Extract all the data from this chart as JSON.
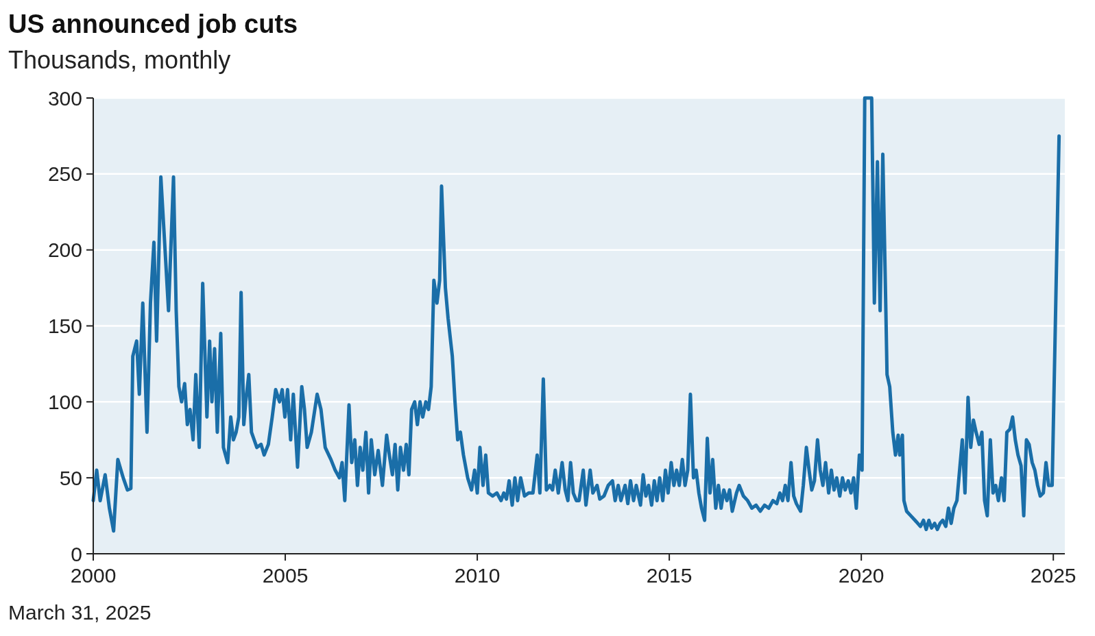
{
  "chart_data": {
    "type": "line",
    "title": "US announced job cuts",
    "subtitle": "Thousands, monthly",
    "annotations": [
      "March 31, 2025"
    ],
    "xlim": [
      2000,
      2025.3
    ],
    "xticks": [
      2000,
      2005,
      2010,
      2015,
      2020,
      2025
    ],
    "ylim": [
      0,
      300
    ],
    "yticks": [
      0,
      50,
      100,
      150,
      200,
      250,
      300
    ],
    "grid": "y",
    "marker": "none",
    "line_style": "solid",
    "series": [
      {
        "color": "#1a6ea8",
        "x": [
          2000.0,
          2000.09,
          2000.18,
          2000.31,
          2000.42,
          2000.53,
          2000.64,
          2000.78,
          2000.89,
          2000.98,
          2001.03,
          2001.13,
          2001.2,
          2001.29,
          2001.4,
          2001.49,
          2001.58,
          2001.65,
          2001.76,
          2001.87,
          2001.96,
          2002.09,
          2002.16,
          2002.23,
          2002.3,
          2002.38,
          2002.45,
          2002.52,
          2002.6,
          2002.67,
          2002.76,
          2002.85,
          2002.96,
          2003.03,
          2003.09,
          2003.16,
          2003.23,
          2003.32,
          2003.39,
          2003.5,
          2003.58,
          2003.65,
          2003.72,
          2003.79,
          2003.85,
          2003.92,
          2003.97,
          2004.05,
          2004.12,
          2004.19,
          2004.26,
          2004.37,
          2004.45,
          2004.56,
          2004.66,
          2004.75,
          2004.85,
          2004.92,
          2004.99,
          2005.06,
          2005.14,
          2005.21,
          2005.32,
          2005.43,
          2005.5,
          2005.57,
          2005.68,
          2005.83,
          2005.93,
          2006.04,
          2006.19,
          2006.3,
          2006.41,
          2006.48,
          2006.55,
          2006.66,
          2006.73,
          2006.81,
          2006.88,
          2006.95,
          2007.02,
          2007.1,
          2007.17,
          2007.24,
          2007.33,
          2007.42,
          2007.53,
          2007.64,
          2007.71,
          2007.79,
          2007.86,
          2007.93,
          2008.0,
          2008.08,
          2008.15,
          2008.22,
          2008.29,
          2008.37,
          2008.44,
          2008.51,
          2008.58,
          2008.66,
          2008.73,
          2008.8,
          2008.87,
          2008.95,
          2009.02,
          2009.07,
          2009.17,
          2009.24,
          2009.35,
          2009.42,
          2009.49,
          2009.56,
          2009.64,
          2009.75,
          2009.85,
          2009.93,
          2010.0,
          2010.07,
          2010.15,
          2010.22,
          2010.29,
          2010.4,
          2010.51,
          2010.62,
          2010.69,
          2010.76,
          2010.83,
          2010.91,
          2010.98,
          2011.05,
          2011.13,
          2011.23,
          2011.34,
          2011.45,
          2011.56,
          2011.63,
          2011.72,
          2011.8,
          2011.89,
          2011.96,
          2012.03,
          2012.11,
          2012.21,
          2012.29,
          2012.36,
          2012.43,
          2012.5,
          2012.58,
          2012.65,
          2012.76,
          2012.83,
          2012.94,
          2013.01,
          2013.12,
          2013.19,
          2013.3,
          2013.41,
          2013.52,
          2013.59,
          2013.67,
          2013.74,
          2013.85,
          2013.92,
          2013.99,
          2014.07,
          2014.14,
          2014.25,
          2014.32,
          2014.39,
          2014.46,
          2014.54,
          2014.61,
          2014.68,
          2014.75,
          2014.83,
          2014.9,
          2014.97,
          2015.05,
          2015.12,
          2015.19,
          2015.26,
          2015.34,
          2015.41,
          2015.48,
          2015.55,
          2015.63,
          2015.7,
          2015.77,
          2015.84,
          2015.92,
          2015.99,
          2016.06,
          2016.13,
          2016.21,
          2016.28,
          2016.35,
          2016.42,
          2016.5,
          2016.57,
          2016.64,
          2016.75,
          2016.82,
          2016.93,
          2017.04,
          2017.15,
          2017.26,
          2017.37,
          2017.48,
          2017.59,
          2017.7,
          2017.8,
          2017.88,
          2017.95,
          2018.02,
          2018.09,
          2018.17,
          2018.24,
          2018.31,
          2018.42,
          2018.49,
          2018.57,
          2018.64,
          2018.71,
          2018.78,
          2018.86,
          2018.93,
          2019.0,
          2019.07,
          2019.15,
          2019.22,
          2019.29,
          2019.36,
          2019.44,
          2019.51,
          2019.58,
          2019.66,
          2019.73,
          2019.8,
          2019.87,
          2019.95,
          2020.02,
          2020.09,
          2020.2,
          2020.27,
          2020.34,
          2020.42,
          2020.49,
          2020.56,
          2020.64,
          2020.67,
          2020.74,
          2020.82,
          2020.89,
          2020.96,
          2021.0,
          2021.07,
          2021.11,
          2021.18,
          2021.29,
          2021.4,
          2021.47,
          2021.54,
          2021.62,
          2021.69,
          2021.76,
          2021.83,
          2021.91,
          2021.98,
          2022.05,
          2022.12,
          2022.2,
          2022.27,
          2022.34,
          2022.41,
          2022.49,
          2022.56,
          2022.63,
          2022.7,
          2022.78,
          2022.85,
          2022.92,
          2022.99,
          2023.07,
          2023.14,
          2023.21,
          2023.28,
          2023.36,
          2023.43,
          2023.5,
          2023.57,
          2023.65,
          2023.72,
          2023.79,
          2023.87,
          2023.94,
          2024.01,
          2024.08,
          2024.16,
          2024.23,
          2024.3,
          2024.37,
          2024.45,
          2024.52,
          2024.59,
          2024.66,
          2024.74,
          2024.81,
          2024.88,
          2024.97,
          2025.15
        ],
        "values": [
          35,
          55,
          35,
          52,
          30,
          15,
          62,
          50,
          42,
          43,
          130,
          140,
          105,
          165,
          80,
          165,
          205,
          140,
          248,
          200,
          160,
          248,
          160,
          110,
          100,
          112,
          85,
          95,
          75,
          118,
          70,
          178,
          90,
          140,
          100,
          135,
          80,
          145,
          70,
          60,
          90,
          75,
          80,
          90,
          172,
          85,
          100,
          118,
          80,
          75,
          70,
          72,
          65,
          72,
          90,
          108,
          100,
          108,
          90,
          108,
          75,
          105,
          57,
          110,
          95,
          70,
          80,
          105,
          95,
          70,
          62,
          55,
          50,
          60,
          35,
          98,
          60,
          75,
          45,
          70,
          55,
          80,
          40,
          75,
          52,
          68,
          45,
          78,
          65,
          52,
          72,
          42,
          70,
          55,
          72,
          52,
          95,
          100,
          85,
          100,
          90,
          100,
          95,
          110,
          180,
          165,
          180,
          242,
          175,
          155,
          130,
          100,
          75,
          80,
          65,
          50,
          42,
          55,
          40,
          70,
          45,
          65,
          40,
          38,
          40,
          35,
          40,
          36,
          48,
          32,
          50,
          35,
          50,
          38,
          40,
          40,
          65,
          40,
          115,
          42,
          45,
          42,
          55,
          40,
          60,
          42,
          35,
          60,
          40,
          35,
          35,
          55,
          32,
          55,
          40,
          45,
          36,
          38,
          45,
          48,
          35,
          45,
          35,
          45,
          33,
          48,
          35,
          45,
          32,
          52,
          38,
          45,
          32,
          48,
          35,
          50,
          35,
          55,
          40,
          60,
          45,
          55,
          45,
          62,
          45,
          55,
          105,
          50,
          55,
          40,
          30,
          22,
          76,
          40,
          62,
          30,
          45,
          30,
          42,
          35,
          42,
          28,
          40,
          45,
          38,
          35,
          30,
          32,
          28,
          32,
          30,
          35,
          33,
          40,
          35,
          45,
          35,
          60,
          38,
          33,
          28,
          45,
          70,
          55,
          42,
          48,
          75,
          55,
          45,
          60,
          40,
          55,
          42,
          50,
          38,
          50,
          42,
          48,
          40,
          50,
          30,
          65,
          55,
          300,
          300,
          300,
          165,
          258,
          160,
          263,
          160,
          118,
          110,
          80,
          65,
          78,
          65,
          78,
          35,
          28,
          25,
          22,
          20,
          18,
          22,
          16,
          22,
          17,
          20,
          16,
          20,
          22,
          18,
          30,
          20,
          30,
          35,
          55,
          75,
          40,
          103,
          70,
          88,
          80,
          72,
          80,
          35,
          25,
          75,
          40,
          45,
          35,
          50,
          35,
          80,
          82,
          90,
          75,
          65,
          58,
          25,
          75,
          72,
          60,
          55,
          45,
          38,
          40,
          60,
          45,
          45,
          275
        ]
      }
    ]
  }
}
